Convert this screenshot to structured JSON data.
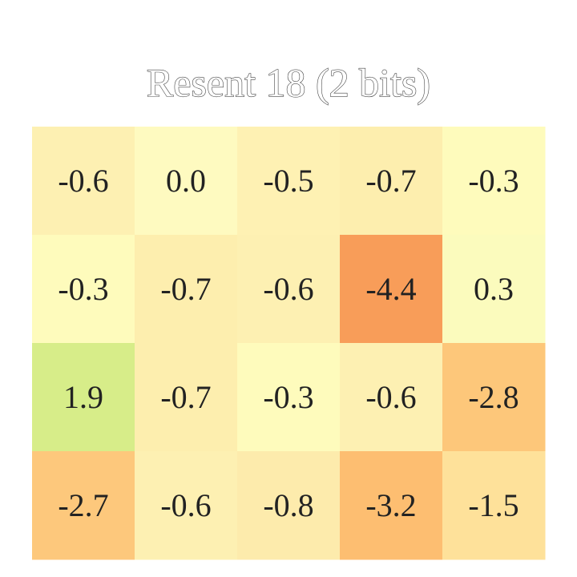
{
  "chart_data": {
    "type": "heatmap",
    "title": "Resent 18 (2 bits)",
    "rows": 4,
    "cols": 5,
    "values": [
      [
        -0.6,
        0.0,
        -0.5,
        -0.7,
        -0.3
      ],
      [
        -0.3,
        -0.7,
        -0.6,
        -4.4,
        0.3
      ],
      [
        1.9,
        -0.7,
        -0.3,
        -0.6,
        -2.8
      ],
      [
        -2.7,
        -0.6,
        -0.8,
        -3.2,
        -1.5
      ]
    ],
    "labels": [
      [
        "-0.6",
        "0.0",
        "-0.5",
        "-0.7",
        "-0.3"
      ],
      [
        "-0.3",
        "-0.7",
        "-0.6",
        "-4.4",
        "0.3"
      ],
      [
        "1.9",
        "-0.7",
        "-0.3",
        "-0.6",
        "-2.8"
      ],
      [
        "-2.7",
        "-0.6",
        "-0.8",
        "-3.2",
        "-1.5"
      ]
    ],
    "colormap": "RdYlGn",
    "color_range": [
      -6,
      6
    ],
    "colors": [
      [
        "#fdf0b2",
        "#fefac0",
        "#fef1b3",
        "#fdeeae",
        "#fefbbc"
      ],
      [
        "#fefbbc",
        "#fdeeae",
        "#fdf0b2",
        "#f89d59",
        "#fbfbbd"
      ],
      [
        "#d7ed89",
        "#fdeeae",
        "#fefbbc",
        "#fdf0b2",
        "#fdc77a"
      ],
      [
        "#fdc87c",
        "#fdf0b2",
        "#fdebac",
        "#fdbe71",
        "#fee19a"
      ]
    ],
    "grid": false,
    "legend": "none"
  }
}
